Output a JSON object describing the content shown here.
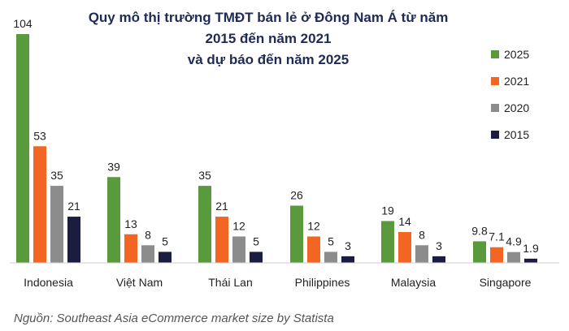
{
  "chart_data": {
    "type": "bar",
    "title_lines": [
      "Quy mô thị trường TMĐT bán lẻ ở Đông Nam Á từ năm",
      "2015 đến năm 2021",
      "và dự báo đến năm 2025"
    ],
    "categories": [
      "Indonesia",
      "Việt Nam",
      "Thái Lan",
      "Philippines",
      "Malaysia",
      "Singapore"
    ],
    "series": [
      {
        "name": "2025",
        "color": "#5a9a3c",
        "values": [
          104,
          39,
          35,
          26,
          19,
          9.8
        ],
        "labels": [
          "104",
          "39",
          "35",
          "26",
          "19",
          "9.8"
        ]
      },
      {
        "name": "2021",
        "color": "#f26522",
        "values": [
          53,
          13,
          21,
          12,
          14,
          7.1
        ],
        "labels": [
          "53",
          "13",
          "21",
          "12",
          "14",
          "7.1"
        ]
      },
      {
        "name": "2020",
        "color": "#8c8c8c",
        "values": [
          35,
          8,
          12,
          5,
          8,
          4.9
        ],
        "labels": [
          "35",
          "8",
          "12",
          "5",
          "8",
          "4.9"
        ]
      },
      {
        "name": "2015",
        "color": "#1a1d3f",
        "values": [
          21,
          5,
          5,
          3,
          3,
          1.9
        ],
        "labels": [
          "21",
          "5",
          "5",
          "3",
          "3",
          "1.9"
        ]
      }
    ],
    "legend_order": [
      "2025",
      "2021",
      "2020",
      "2015"
    ],
    "legend_position": "right",
    "ylim": [
      0,
      104
    ],
    "grid": false,
    "source": "Nguồn: Southeast Asia eCommerce market size by Statista"
  }
}
